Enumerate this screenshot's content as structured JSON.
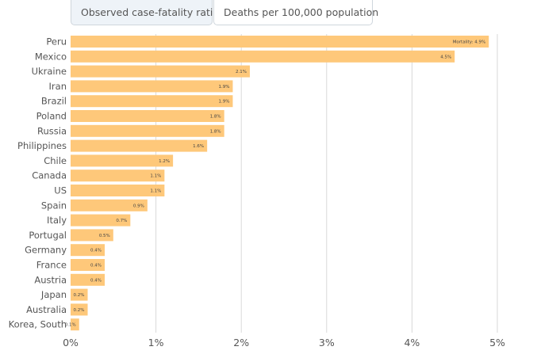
{
  "tabs": [
    {
      "label": "Observed case-fatality ratio",
      "active": true
    },
    {
      "label": "Deaths per 100,000 population",
      "active": false
    }
  ],
  "chart_data": {
    "type": "bar",
    "orientation": "horizontal",
    "title": "",
    "xlabel": "",
    "ylabel": "",
    "xlim": [
      0,
      5
    ],
    "grid": true,
    "bar_color": "#fec87a",
    "gridline_color": "#d9d9d9",
    "x_ticks": [
      0,
      1,
      2,
      3,
      4,
      5
    ],
    "x_tick_labels": [
      "0%",
      "1%",
      "2%",
      "3%",
      "4%",
      "5%"
    ],
    "categories": [
      "Peru",
      "Mexico",
      "Ukraine",
      "Iran",
      "Brazil",
      "Poland",
      "Russia",
      "Philippines",
      "Chile",
      "Canada",
      "US",
      "Spain",
      "Italy",
      "Portugal",
      "Germany",
      "France",
      "Austria",
      "Japan",
      "Australia",
      "Korea, South"
    ],
    "values": [
      4.9,
      4.5,
      2.1,
      1.9,
      1.9,
      1.8,
      1.8,
      1.6,
      1.2,
      1.1,
      1.1,
      0.9,
      0.7,
      0.5,
      0.4,
      0.4,
      0.4,
      0.2,
      0.2,
      0.1
    ],
    "data_labels": [
      "Mortality: 4.9%",
      "4.5%",
      "2.1%",
      "1.9%",
      "1.9%",
      "1.8%",
      "1.8%",
      "1.6%",
      "1.2%",
      "1.1%",
      "1.1%",
      "0.9%",
      "0.7%",
      "0.5%",
      "0.4%",
      "0.4%",
      "0.4%",
      "0.2%",
      "0.2%",
      "0.1%"
    ]
  }
}
